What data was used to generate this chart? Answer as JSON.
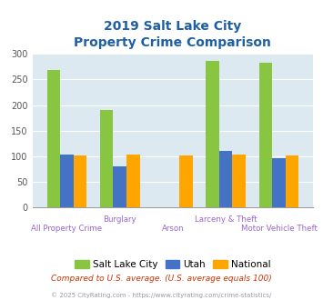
{
  "title_line1": "2019 Salt Lake City",
  "title_line2": "Property Crime Comparison",
  "categories": [
    "All Property Crime",
    "Burglary",
    "Arson",
    "Larceny & Theft",
    "Motor Vehicle Theft"
  ],
  "slc_values": [
    268,
    190,
    0,
    286,
    283
  ],
  "utah_values": [
    103,
    80,
    0,
    110,
    96
  ],
  "national_values": [
    101,
    102,
    101,
    102,
    101
  ],
  "slc_color": "#88c540",
  "utah_color": "#4472c4",
  "national_color": "#ffa500",
  "bg_color": "#dce9f0",
  "ylim": [
    0,
    300
  ],
  "yticks": [
    0,
    50,
    100,
    150,
    200,
    250,
    300
  ],
  "legend_labels": [
    "Salt Lake City",
    "Utah",
    "National"
  ],
  "footnote1": "Compared to U.S. average. (U.S. average equals 100)",
  "footnote2": "© 2025 CityRating.com - https://www.cityrating.com/crime-statistics/",
  "title_color": "#1f5fa6",
  "xlabel_color": "#9966cc",
  "footnote1_color": "#cc3300",
  "footnote2_color": "#9999aa",
  "label_row1": [
    "",
    "Burglary",
    "",
    "Larceny & Theft",
    ""
  ],
  "label_row2": [
    "All Property Crime",
    "",
    "Arson",
    "",
    "Motor Vehicle Theft"
  ]
}
